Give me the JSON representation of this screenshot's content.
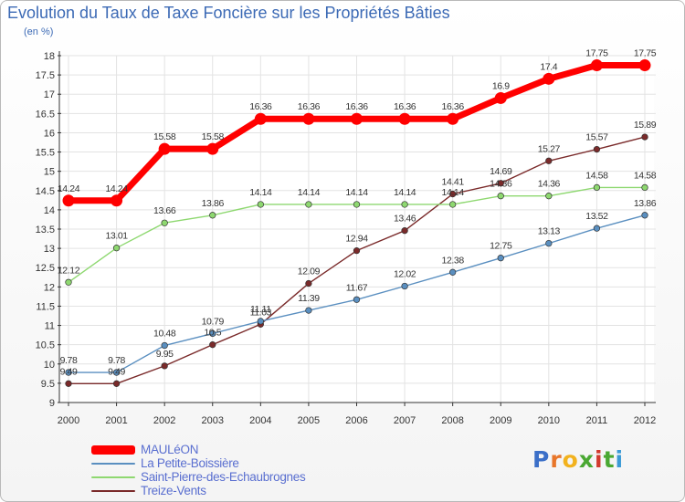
{
  "chart_data": {
    "type": "line",
    "title": "Evolution du Taux de Taxe Foncière sur les Propriétés Bâties",
    "unit_label": "(en %)",
    "xlabel": "",
    "ylabel": "",
    "ylim": [
      9,
      18
    ],
    "y_ticks": [
      "9",
      "9.5",
      "10",
      "10.5",
      "11",
      "11.5",
      "12",
      "12.5",
      "13",
      "13.5",
      "14",
      "14.5",
      "15",
      "15.5",
      "16",
      "16.5",
      "17",
      "17.5",
      "18"
    ],
    "categories": [
      "2000",
      "2001",
      "2002",
      "2003",
      "2004",
      "2005",
      "2006",
      "2007",
      "2008",
      "2009",
      "2010",
      "2011",
      "2012"
    ],
    "series": [
      {
        "name": "MAULéON",
        "color": "#ff0000",
        "values": [
          14.24,
          14.24,
          15.58,
          15.58,
          16.36,
          16.36,
          16.36,
          16.36,
          16.36,
          16.9,
          17.4,
          17.75,
          17.75
        ],
        "labels": [
          "14.24",
          "14.24",
          "15.58",
          "15.58",
          "16.36",
          "16.36",
          "16.36",
          "16.36",
          "16.36",
          "16.9",
          "17.4",
          "17.75",
          "17.75"
        ]
      },
      {
        "name": "La Petite-Boissière",
        "color": "#5a8fc0",
        "values": [
          9.78,
          9.78,
          10.48,
          10.79,
          11.11,
          11.39,
          11.67,
          12.02,
          12.38,
          12.75,
          13.13,
          13.52,
          13.86
        ],
        "labels": [
          "9.78",
          "9.78",
          "10.48",
          "10.79",
          "11.11",
          "11.39",
          "11.67",
          "12.02",
          "12.38",
          "12.75",
          "13.13",
          "13.52",
          "13.86"
        ]
      },
      {
        "name": "Saint-Pierre-des-Echaubrognes",
        "color": "#8ed870",
        "values": [
          12.12,
          13.01,
          13.66,
          13.86,
          14.14,
          14.14,
          14.14,
          14.14,
          14.14,
          14.36,
          14.36,
          14.58,
          14.58
        ],
        "labels": [
          "12.12",
          "13.01",
          "13.66",
          "13.86",
          "14.14",
          "14.14",
          "14.14",
          "14.14",
          "14.14",
          "14.36",
          "14.36",
          "14.58",
          "14.58"
        ]
      },
      {
        "name": "Treize-Vents",
        "color": "#7a2a2a",
        "values": [
          9.49,
          9.49,
          9.95,
          10.5,
          11.03,
          12.09,
          12.94,
          13.46,
          14.41,
          14.69,
          15.27,
          15.57,
          15.89
        ],
        "labels": [
          "9.49",
          "9.49",
          "9.95",
          "10.5",
          "11.03",
          "12.09",
          "12.94",
          "13.46",
          "14.41",
          "14.69",
          "15.27",
          "15.57",
          "15.89"
        ]
      }
    ]
  },
  "brand": {
    "letters": [
      "P",
      "r",
      "o",
      "x",
      "i",
      "t",
      "i"
    ],
    "colors": [
      "#3b6fc8",
      "#e8762a",
      "#f2b21e",
      "#4aa832",
      "#d23a2e",
      "#4aa832",
      "#3b9ad6"
    ]
  }
}
